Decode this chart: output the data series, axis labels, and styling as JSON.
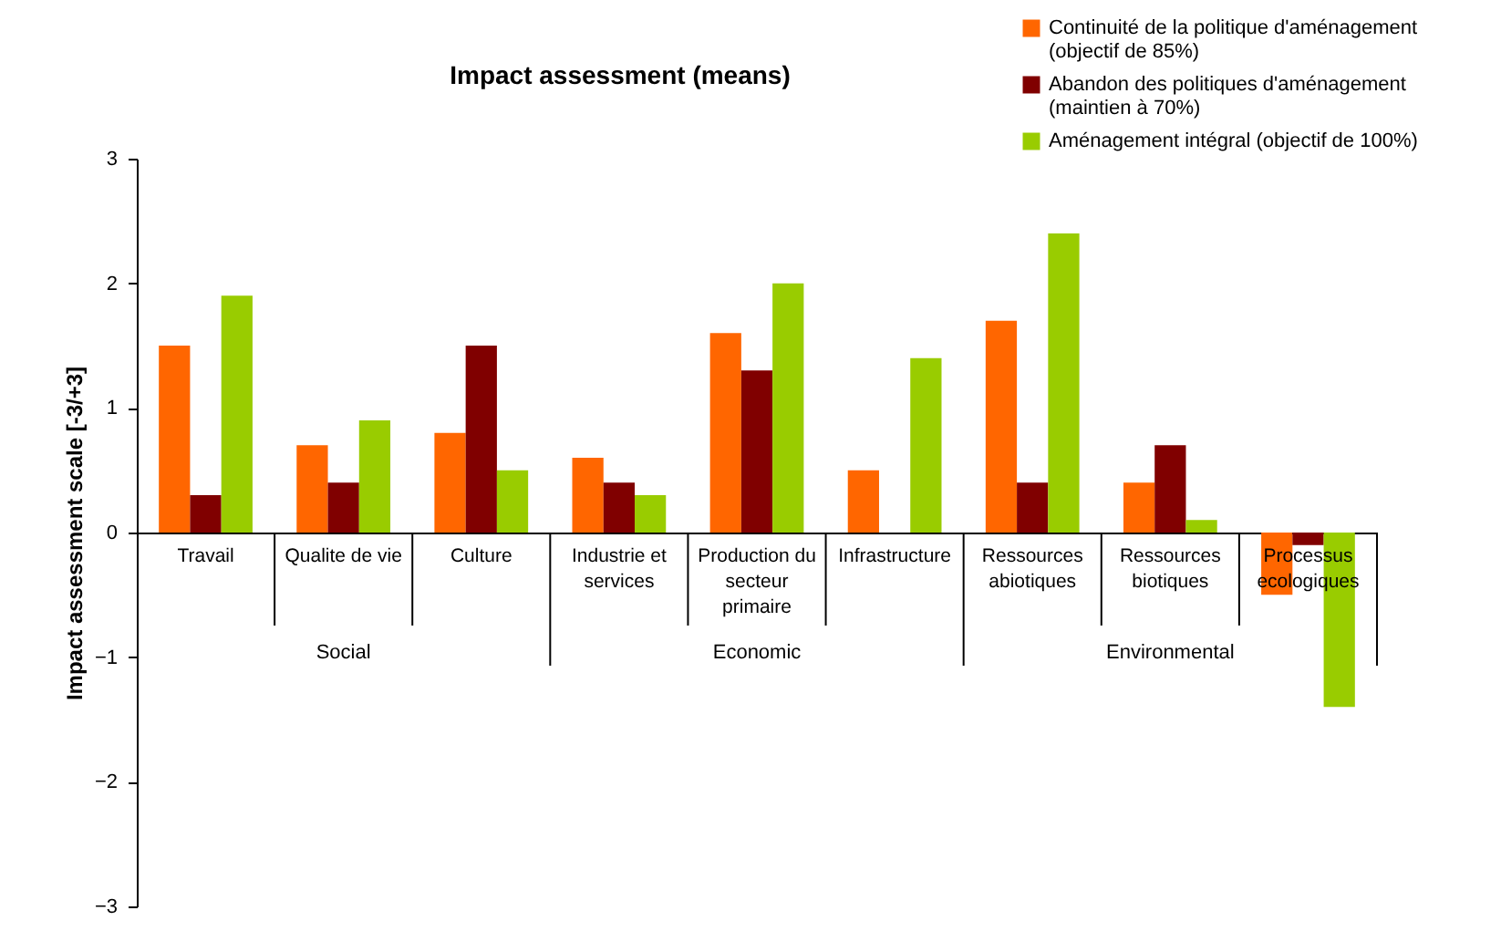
{
  "chart_data": {
    "type": "bar",
    "title": "Impact assessment (means)",
    "ylabel": "Impact assessment scale [-3/+3]",
    "categories": [
      "Travail",
      "Qualite de vie",
      "Culture",
      "Industrie et services",
      "Production du secteur primaire",
      "Infrastructure",
      "Ressources abiotiques",
      "Ressources biotiques",
      "Processus ecologiques"
    ],
    "series": [
      {
        "name": "Continuité de la politique d'aménagement (objectif de 85%)",
        "color": "#ff6600",
        "values": [
          1.5,
          0.7,
          0.8,
          0.6,
          1.6,
          0.5,
          1.7,
          0.4,
          -0.5
        ]
      },
      {
        "name": "Abandon des politiques d'aménagement (maintien à 70%)",
        "color": "#800000",
        "values": [
          0.3,
          0.4,
          1.5,
          0.4,
          1.3,
          null,
          0.4,
          0.7,
          -0.1
        ]
      },
      {
        "name": "Aménagement intégral (objectif de 100%)",
        "color": "#99cc00",
        "values": [
          1.9,
          0.9,
          0.5,
          0.3,
          2.0,
          1.4,
          2.4,
          0.1,
          -1.4
        ]
      }
    ],
    "annotations": [
      "Social",
      "Economic",
      "Environmental"
    ],
    "ylim": [
      -3,
      3
    ],
    "yticks": [
      -3,
      -2,
      -1,
      0,
      1,
      2,
      3
    ],
    "grid": false,
    "legend": "top right"
  }
}
